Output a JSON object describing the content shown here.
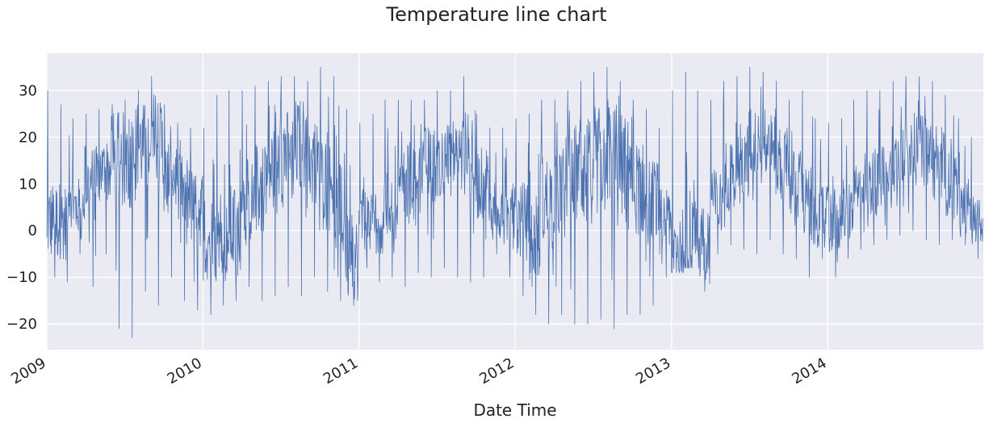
{
  "chart_data": {
    "type": "line",
    "title": "Temperature line chart",
    "xlabel": "Date Time",
    "ylabel": "",
    "x_ticks": [
      "2009",
      "2010",
      "2011",
      "2012",
      "2013",
      "2014"
    ],
    "x_range": [
      "2009-01-01",
      "2014-12-31"
    ],
    "y_ticks": [
      -20,
      -10,
      0,
      10,
      20,
      30
    ],
    "ylim": [
      -25.5,
      38
    ],
    "grid": true,
    "legend": "none",
    "line_color": "#4c72b0",
    "background_color": "#eaeaf2",
    "series": [
      {
        "monthly": [
          {
            "x": "2009-01",
            "low": -10,
            "high": 30,
            "mean": 2
          },
          {
            "x": "2009-02",
            "low": -11,
            "high": 27,
            "mean": 2
          },
          {
            "x": "2009-03",
            "low": -5,
            "high": 24,
            "mean": 5
          },
          {
            "x": "2009-04",
            "low": -12,
            "high": 25,
            "mean": 10
          },
          {
            "x": "2009-05",
            "low": -5,
            "high": 26,
            "mean": 13
          },
          {
            "x": "2009-06",
            "low": -21,
            "high": 27,
            "mean": 15
          },
          {
            "x": "2009-07",
            "low": -23,
            "high": 28,
            "mean": 16
          },
          {
            "x": "2009-08",
            "low": -13,
            "high": 30,
            "mean": 18
          },
          {
            "x": "2009-09",
            "low": -16,
            "high": 33,
            "mean": 17
          },
          {
            "x": "2009-10",
            "low": -10,
            "high": 27,
            "mean": 12
          },
          {
            "x": "2009-11",
            "low": -15,
            "high": 23,
            "mean": 8
          },
          {
            "x": "2009-12",
            "low": -17,
            "high": 22,
            "mean": 5
          },
          {
            "x": "2010-01",
            "low": -18,
            "high": 22,
            "mean": -2
          },
          {
            "x": "2010-02",
            "low": -16,
            "high": 29,
            "mean": -3
          },
          {
            "x": "2010-03",
            "low": -15,
            "high": 30,
            "mean": 0
          },
          {
            "x": "2010-04",
            "low": -12,
            "high": 30,
            "mean": 6
          },
          {
            "x": "2010-05",
            "low": -15,
            "high": 31,
            "mean": 9
          },
          {
            "x": "2010-06",
            "low": -14,
            "high": 32,
            "mean": 13
          },
          {
            "x": "2010-07",
            "low": -12,
            "high": 33,
            "mean": 16
          },
          {
            "x": "2010-08",
            "low": -14,
            "high": 33,
            "mean": 18
          },
          {
            "x": "2010-09",
            "low": -10,
            "high": 32,
            "mean": 14
          },
          {
            "x": "2010-10",
            "low": -13,
            "high": 35,
            "mean": 10
          },
          {
            "x": "2010-11",
            "low": -15,
            "high": 33,
            "mean": 4
          },
          {
            "x": "2010-12",
            "low": -16,
            "high": 26,
            "mean": -6
          },
          {
            "x": "2011-01",
            "low": -8,
            "high": 23,
            "mean": 2
          },
          {
            "x": "2011-02",
            "low": -11,
            "high": 25,
            "mean": 3
          },
          {
            "x": "2011-03",
            "low": -10,
            "high": 28,
            "mean": 6
          },
          {
            "x": "2011-04",
            "low": -12,
            "high": 28,
            "mean": 10
          },
          {
            "x": "2011-05",
            "low": -9,
            "high": 28,
            "mean": 12
          },
          {
            "x": "2011-06",
            "low": -10,
            "high": 28,
            "mean": 14
          },
          {
            "x": "2011-07",
            "low": -8,
            "high": 30,
            "mean": 15
          },
          {
            "x": "2011-08",
            "low": -10,
            "high": 30,
            "mean": 16
          },
          {
            "x": "2011-09",
            "low": -11,
            "high": 33,
            "mean": 16
          },
          {
            "x": "2011-10",
            "low": -10,
            "high": 25,
            "mean": 10
          },
          {
            "x": "2011-11",
            "low": -5,
            "high": 22,
            "mean": 4
          },
          {
            "x": "2011-12",
            "low": -10,
            "high": 22,
            "mean": 3
          },
          {
            "x": "2012-01",
            "low": -14,
            "high": 24,
            "mean": 2
          },
          {
            "x": "2012-02",
            "low": -18,
            "high": 25,
            "mean": -1
          },
          {
            "x": "2012-03",
            "low": -20,
            "high": 28,
            "mean": 6
          },
          {
            "x": "2012-04",
            "low": -18,
            "high": 28,
            "mean": 8
          },
          {
            "x": "2012-05",
            "low": -20,
            "high": 30,
            "mean": 12
          },
          {
            "x": "2012-06",
            "low": -20,
            "high": 32,
            "mean": 13
          },
          {
            "x": "2012-07",
            "low": -19,
            "high": 34,
            "mean": 15
          },
          {
            "x": "2012-08",
            "low": -21,
            "high": 35,
            "mean": 17
          },
          {
            "x": "2012-09",
            "low": -18,
            "high": 32,
            "mean": 14
          },
          {
            "x": "2012-10",
            "low": -18,
            "high": 28,
            "mean": 9
          },
          {
            "x": "2012-11",
            "low": -16,
            "high": 26,
            "mean": 6
          },
          {
            "x": "2012-12",
            "low": -10,
            "high": 22,
            "mean": 2
          },
          {
            "x": "2013-01",
            "low": -9,
            "high": 30,
            "mean": -3
          },
          {
            "x": "2013-02",
            "low": -8,
            "high": 34,
            "mean": -3
          },
          {
            "x": "2013-03",
            "low": -13,
            "high": 30,
            "mean": -2
          },
          {
            "x": "2013-04",
            "low": -5,
            "high": 28,
            "mean": 6
          },
          {
            "x": "2013-05",
            "low": -3,
            "high": 32,
            "mean": 12
          },
          {
            "x": "2013-06",
            "low": -4,
            "high": 33,
            "mean": 15
          },
          {
            "x": "2013-07",
            "low": -5,
            "high": 35,
            "mean": 19
          },
          {
            "x": "2013-08",
            "low": -2,
            "high": 34,
            "mean": 18
          },
          {
            "x": "2013-09",
            "low": -5,
            "high": 32,
            "mean": 13
          },
          {
            "x": "2013-10",
            "low": -6,
            "high": 28,
            "mean": 10
          },
          {
            "x": "2013-11",
            "low": -10,
            "high": 30,
            "mean": 5
          },
          {
            "x": "2013-12",
            "low": -6,
            "high": 24,
            "mean": 3
          },
          {
            "x": "2014-01",
            "low": -10,
            "high": 23,
            "mean": 2
          },
          {
            "x": "2014-02",
            "low": -6,
            "high": 24,
            "mean": 4
          },
          {
            "x": "2014-03",
            "low": -4,
            "high": 28,
            "mean": 7
          },
          {
            "x": "2014-04",
            "low": -3,
            "high": 30,
            "mean": 10
          },
          {
            "x": "2014-05",
            "low": -2,
            "high": 30,
            "mean": 12
          },
          {
            "x": "2014-06",
            "low": -1,
            "high": 32,
            "mean": 15
          },
          {
            "x": "2014-07",
            "low": 0,
            "high": 33,
            "mean": 17
          },
          {
            "x": "2014-08",
            "low": -2,
            "high": 33,
            "mean": 17
          },
          {
            "x": "2014-09",
            "low": -3,
            "high": 32,
            "mean": 14
          },
          {
            "x": "2014-10",
            "low": -2,
            "high": 29,
            "mean": 10
          },
          {
            "x": "2014-11",
            "low": -3,
            "high": 24,
            "mean": 5
          },
          {
            "x": "2014-12",
            "low": -6,
            "high": 20,
            "mean": 2
          }
        ]
      }
    ]
  }
}
